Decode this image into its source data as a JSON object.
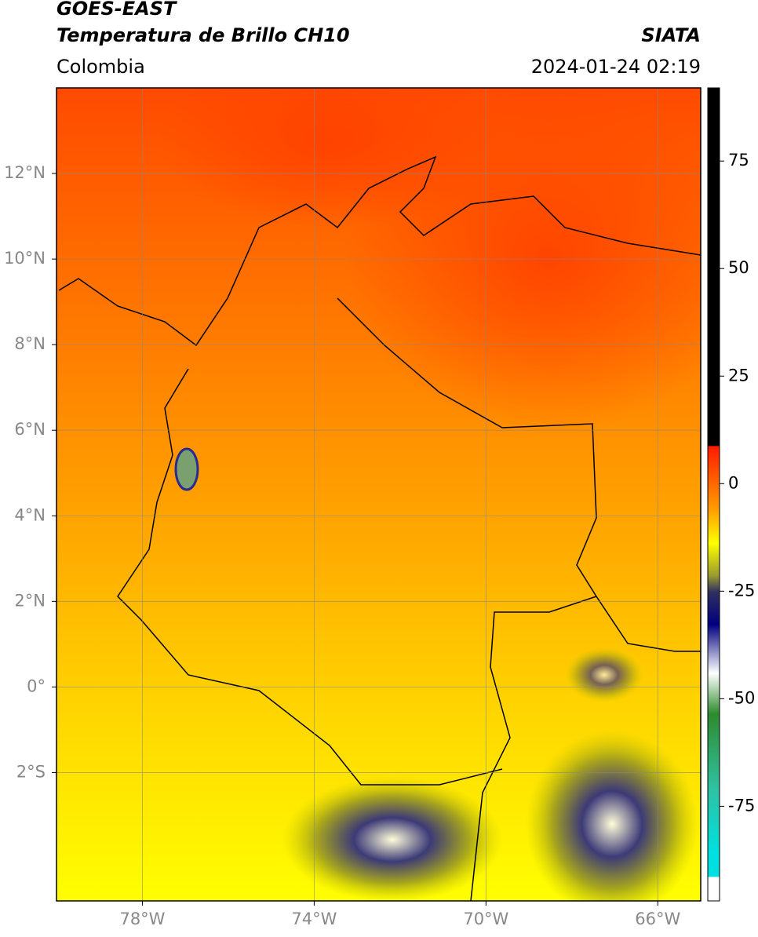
{
  "header": {
    "title": "GOES-EAST",
    "subtitle": "Temperatura de Brillo CH10",
    "source": "SIATA",
    "region": "Colombia",
    "datetime": "2024-01-24 02:19"
  },
  "map": {
    "xlim": [
      -80,
      -65
    ],
    "ylim": [
      -5,
      14
    ],
    "xticks": [
      {
        "value": -78,
        "label": "78°W"
      },
      {
        "value": -74,
        "label": "74°W"
      },
      {
        "value": -70,
        "label": "70°W"
      },
      {
        "value": -66,
        "label": "66°W"
      }
    ],
    "yticks": [
      {
        "value": 12,
        "label": "12°N"
      },
      {
        "value": 10,
        "label": "10°N"
      },
      {
        "value": 8,
        "label": "8°N"
      },
      {
        "value": 6,
        "label": "6°N"
      },
      {
        "value": 4,
        "label": "4°N"
      },
      {
        "value": 2,
        "label": "2°N"
      },
      {
        "value": 0,
        "label": "0°"
      },
      {
        "value": -2,
        "label": "2°S"
      }
    ],
    "grid": true
  },
  "colorbar": {
    "lim": [
      -97,
      92
    ],
    "ticks": [
      75,
      50,
      25,
      0,
      -25,
      -50,
      -75
    ]
  }
}
